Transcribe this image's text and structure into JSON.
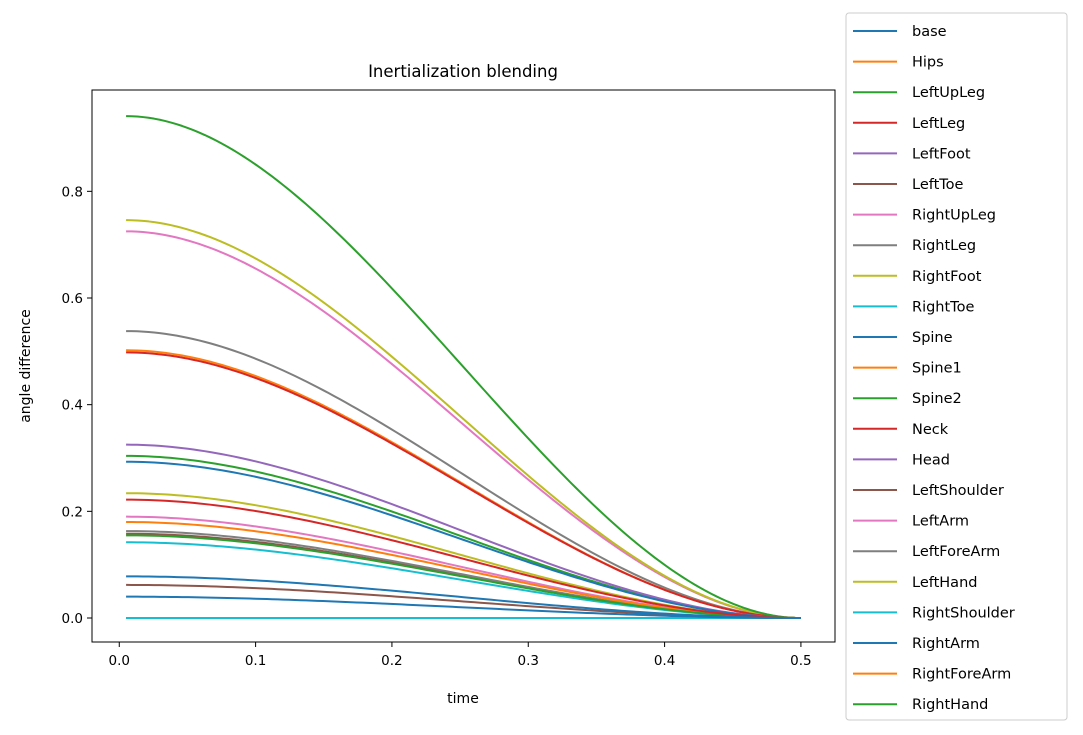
{
  "chart_data": {
    "type": "line",
    "title": "Inertialization blending",
    "xlabel": "time",
    "ylabel": "angle difference",
    "xlim": [
      -0.02,
      0.525
    ],
    "ylim": [
      -0.045,
      0.99
    ],
    "xticks": [
      0.0,
      0.1,
      0.2,
      0.3,
      0.4,
      0.5
    ],
    "xtick_labels": [
      "0.0",
      "0.1",
      "0.2",
      "0.3",
      "0.4",
      "0.5"
    ],
    "yticks": [
      0.0,
      0.2,
      0.4,
      0.6,
      0.8
    ],
    "ytick_labels": [
      "0.0",
      "0.2",
      "0.4",
      "0.6",
      "0.8"
    ],
    "x_start": 0.005,
    "x_end": 0.5,
    "curve_shape": "smooth decay from initial value to 0 at t=0.5",
    "grid": false,
    "legend_position": "outside right",
    "series": [
      {
        "name": "base",
        "color": "#1f77b4",
        "initial_value": 0.0,
        "final_value": 0.0
      },
      {
        "name": "Hips",
        "color": "#ff7f0e",
        "initial_value": 0.0,
        "final_value": 0.0
      },
      {
        "name": "LeftUpLeg",
        "color": "#2ca02c",
        "initial_value": 0.0,
        "final_value": 0.0
      },
      {
        "name": "LeftLeg",
        "color": "#d62728",
        "initial_value": 0.0,
        "final_value": 0.0
      },
      {
        "name": "LeftFoot",
        "color": "#9467bd",
        "initial_value": 0.0,
        "final_value": 0.0
      },
      {
        "name": "LeftToe",
        "color": "#8c564b",
        "initial_value": 0.062,
        "final_value": 0.0
      },
      {
        "name": "RightUpLeg",
        "color": "#e377c2",
        "initial_value": 0.725,
        "final_value": 0.0
      },
      {
        "name": "RightLeg",
        "color": "#7f7f7f",
        "initial_value": 0.538,
        "final_value": 0.0
      },
      {
        "name": "RightFoot",
        "color": "#bcbd22",
        "initial_value": 0.746,
        "final_value": 0.0
      },
      {
        "name": "RightToe",
        "color": "#17becf",
        "initial_value": 0.0,
        "final_value": 0.0
      },
      {
        "name": "Spine",
        "color": "#1f77b4",
        "initial_value": 0.04,
        "final_value": 0.0
      },
      {
        "name": "Spine1",
        "color": "#ff7f0e",
        "initial_value": 0.502,
        "final_value": 0.0
      },
      {
        "name": "Spine2",
        "color": "#2ca02c",
        "initial_value": 0.304,
        "final_value": 0.0
      },
      {
        "name": "Neck",
        "color": "#d62728",
        "initial_value": 0.498,
        "final_value": 0.0
      },
      {
        "name": "Head",
        "color": "#9467bd",
        "initial_value": 0.325,
        "final_value": 0.0
      },
      {
        "name": "LeftShoulder",
        "color": "#8c564b",
        "initial_value": 0.158,
        "final_value": 0.0
      },
      {
        "name": "LeftArm",
        "color": "#e377c2",
        "initial_value": 0.19,
        "final_value": 0.0
      },
      {
        "name": "LeftForeArm",
        "color": "#7f7f7f",
        "initial_value": 0.163,
        "final_value": 0.0
      },
      {
        "name": "LeftHand",
        "color": "#bcbd22",
        "initial_value": 0.234,
        "final_value": 0.0
      },
      {
        "name": "RightShoulder",
        "color": "#17becf",
        "initial_value": 0.142,
        "final_value": 0.0
      },
      {
        "name": "RightArm",
        "color": "#1f77b4",
        "initial_value": 0.293,
        "final_value": 0.0
      },
      {
        "name": "RightForeArm",
        "color": "#ff7f0e",
        "initial_value": 0.18,
        "final_value": 0.0
      },
      {
        "name": "RightHand",
        "color": "#2ca02c",
        "initial_value": 0.941,
        "final_value": 0.0
      }
    ],
    "extra_unlabeled_series": [
      {
        "color": "#2ca02c",
        "initial_value": 0.155,
        "final_value": 0.0
      },
      {
        "color": "#d62728",
        "initial_value": 0.222,
        "final_value": 0.0
      },
      {
        "color": "#1f77b4",
        "initial_value": 0.078,
        "final_value": 0.0
      }
    ]
  }
}
